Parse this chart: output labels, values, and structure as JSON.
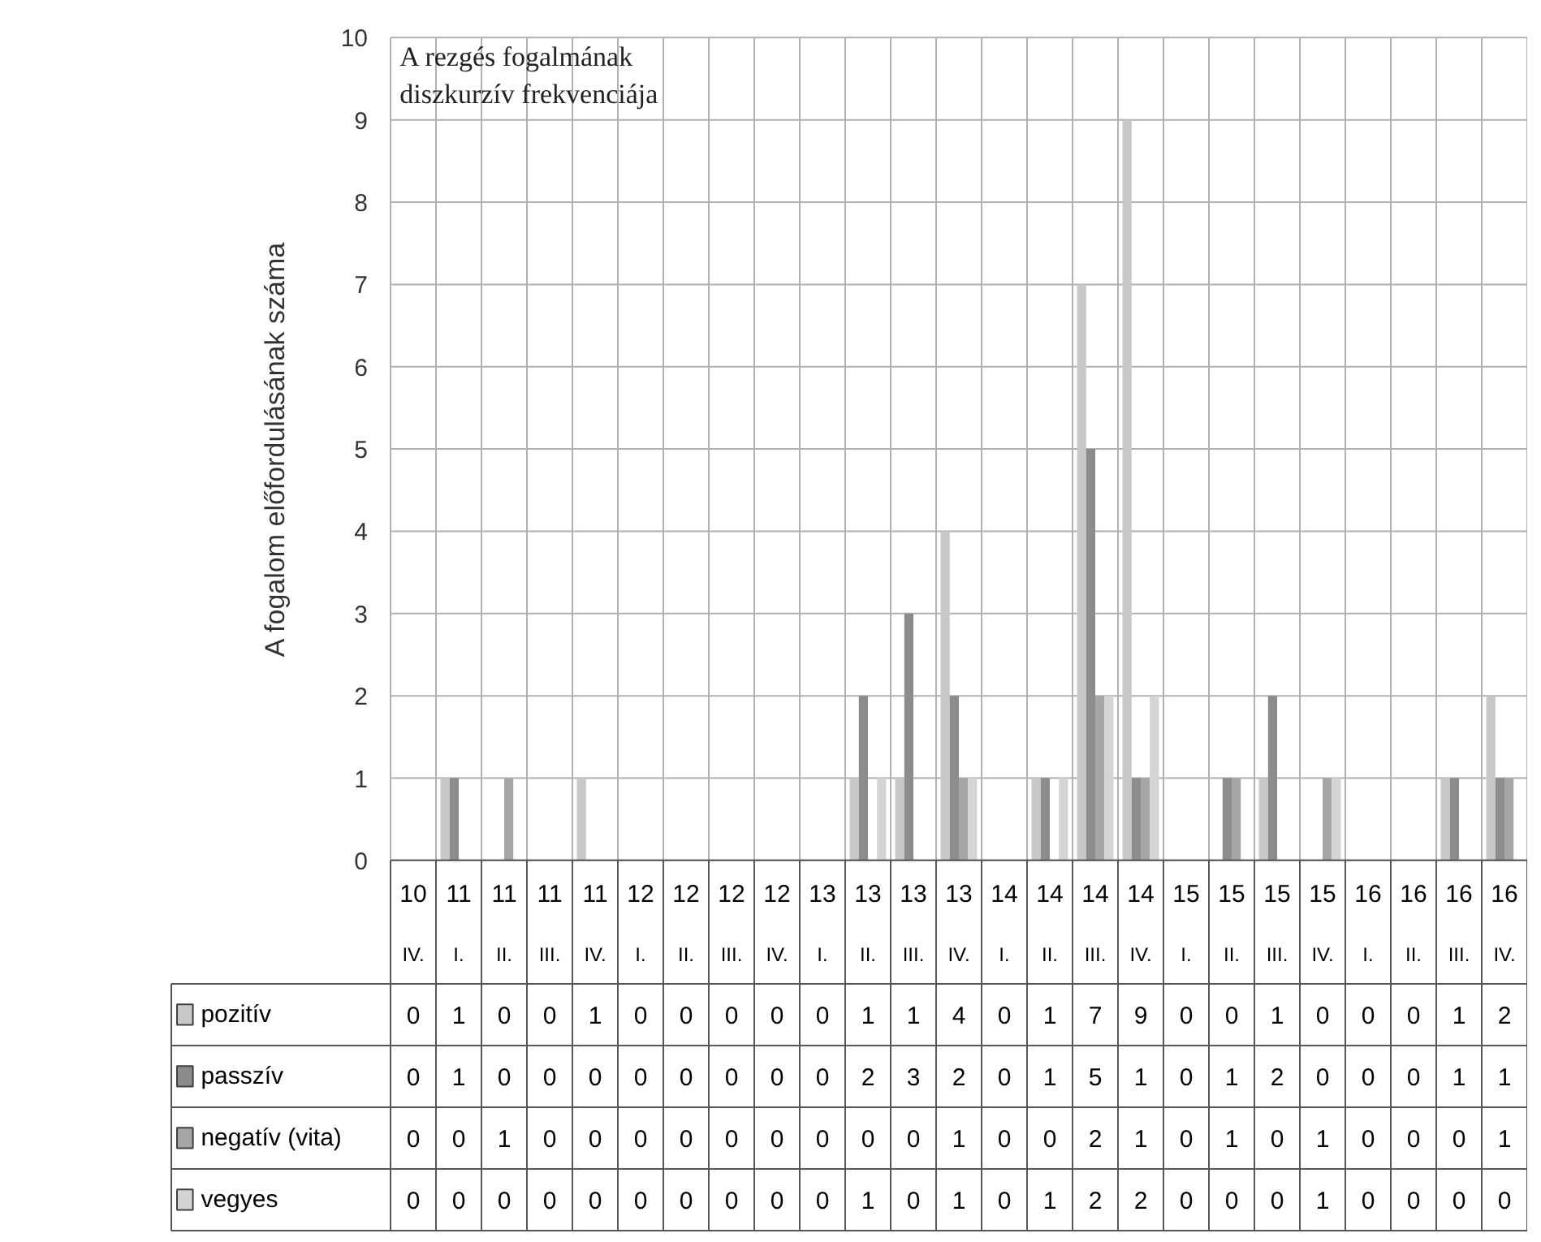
{
  "chart_data": {
    "type": "bar",
    "title": "A rezgés fogalmának\ndiszkurzív frekvenciája",
    "ylabel": "A fogalom előfordulásának száma",
    "categories": [
      "10\nIV.",
      "11\nI.",
      "11\nII.",
      "11\nIII.",
      "11\nIV.",
      "12\nI.",
      "12\nII.",
      "12\nIII.",
      "12\nIV.",
      "13\nI.",
      "13\nII.",
      "13\nIII.",
      "13\nIV.",
      "14\nI.",
      "14\nII.",
      "14\nIII.",
      "14\nIV.",
      "15\nI.",
      "15\nII.",
      "15\nIII.",
      "15\nIV.",
      "16\nI.",
      "16\nII.",
      "16\nIII.",
      "16\nIV."
    ],
    "series": [
      {
        "name": "pozitív",
        "color": "#c8c8c8",
        "values": [
          0,
          1,
          0,
          0,
          1,
          0,
          0,
          0,
          0,
          0,
          1,
          1,
          4,
          0,
          1,
          7,
          9,
          0,
          0,
          1,
          0,
          0,
          0,
          1,
          2
        ]
      },
      {
        "name": "passzív",
        "color": "#8c8c8c",
        "values": [
          0,
          1,
          0,
          0,
          0,
          0,
          0,
          0,
          0,
          0,
          2,
          3,
          2,
          0,
          1,
          5,
          1,
          0,
          1,
          2,
          0,
          0,
          0,
          1,
          1
        ]
      },
      {
        "name": "negatív (vita)",
        "color": "#a6a6a6",
        "values": [
          0,
          0,
          1,
          0,
          0,
          0,
          0,
          0,
          0,
          0,
          0,
          0,
          1,
          0,
          0,
          2,
          1,
          0,
          1,
          0,
          1,
          0,
          0,
          0,
          1
        ]
      },
      {
        "name": "vegyes",
        "color": "#d4d4d4",
        "values": [
          0,
          0,
          0,
          0,
          0,
          0,
          0,
          0,
          0,
          0,
          1,
          0,
          1,
          0,
          1,
          2,
          2,
          0,
          0,
          0,
          1,
          0,
          0,
          0,
          0
        ]
      }
    ],
    "ylim": [
      0,
      10
    ],
    "yticks": [
      0,
      1,
      2,
      3,
      4,
      5,
      6,
      7,
      8,
      9,
      10
    ],
    "grid": true,
    "legend": "bottom",
    "data_labels": true
  }
}
